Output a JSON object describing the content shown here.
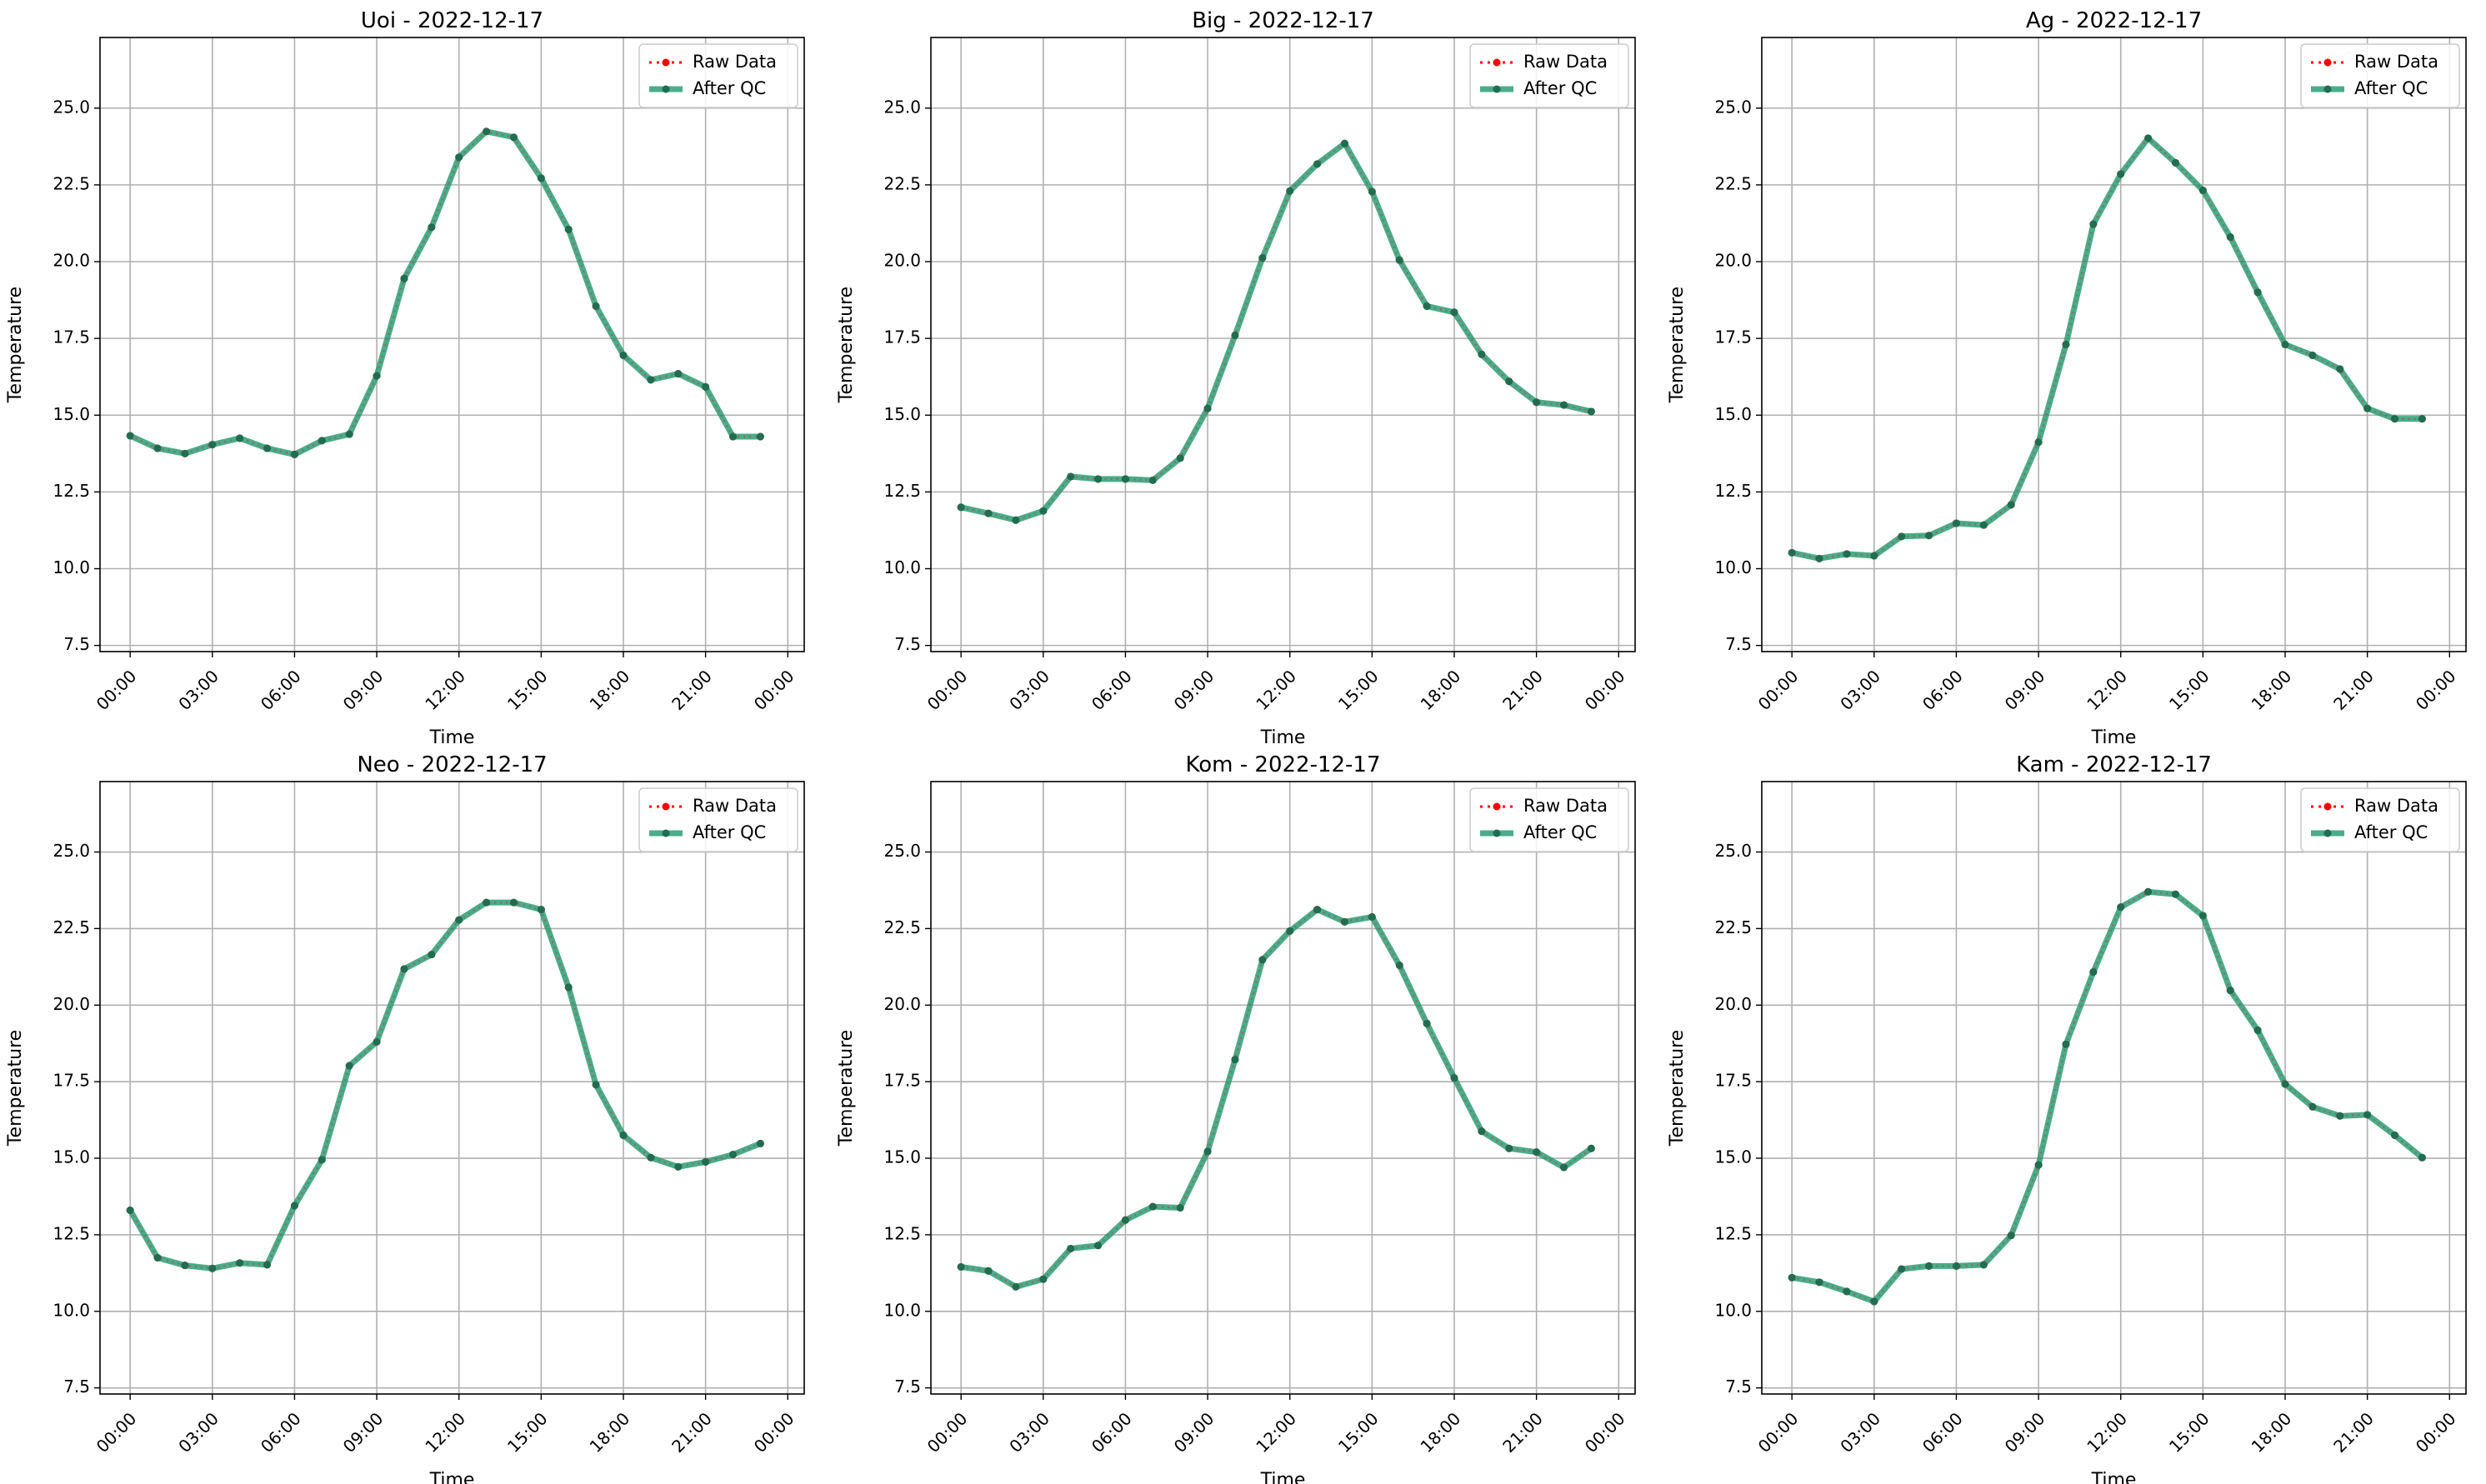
{
  "figure": {
    "background": "#ffffff",
    "grid_color": "#b0b0b0",
    "raw_color": "#ff0000",
    "qc_color": "#2a9d75",
    "qc_marker_color": "#1f6e52"
  },
  "chart_data": [
    {
      "type": "line",
      "title": "Uoi - 2022-12-17",
      "xlabel": "Time",
      "ylabel": "Temperature",
      "x": [
        "00:00",
        "01:00",
        "02:00",
        "03:00",
        "04:00",
        "05:00",
        "06:00",
        "07:00",
        "08:00",
        "09:00",
        "10:00",
        "11:00",
        "12:00",
        "13:00",
        "14:00",
        "15:00",
        "16:00",
        "17:00",
        "18:00",
        "19:00",
        "20:00",
        "21:00",
        "22:00",
        "23:00"
      ],
      "xticks": [
        "00:00",
        "03:00",
        "06:00",
        "09:00",
        "12:00",
        "15:00",
        "18:00",
        "21:00",
        "00:00"
      ],
      "yticks": [
        "7.5",
        "10.0",
        "12.5",
        "15.0",
        "17.5",
        "20.0",
        "22.5",
        "25.0"
      ],
      "ylim": [
        7.3,
        27.3
      ],
      "grid": true,
      "legend": "top-right",
      "series": [
        {
          "name": "Raw Data",
          "values": [
            14.33,
            13.92,
            13.75,
            14.04,
            14.25,
            13.92,
            13.72,
            14.17,
            14.38,
            16.28,
            19.45,
            21.12,
            23.4,
            24.24,
            24.05,
            22.72,
            21.05,
            18.55,
            16.95,
            16.15,
            16.35,
            15.92,
            14.3,
            14.3
          ]
        },
        {
          "name": "After QC",
          "values": [
            14.33,
            13.92,
            13.75,
            14.04,
            14.25,
            13.92,
            13.72,
            14.17,
            14.38,
            16.28,
            19.45,
            21.12,
            23.4,
            24.24,
            24.05,
            22.72,
            21.05,
            18.55,
            16.95,
            16.15,
            16.35,
            15.92,
            14.3,
            14.3
          ]
        }
      ]
    },
    {
      "type": "line",
      "title": "Big - 2022-12-17",
      "xlabel": "Time",
      "ylabel": "Temperature",
      "x": [
        "00:00",
        "01:00",
        "02:00",
        "03:00",
        "04:00",
        "05:00",
        "06:00",
        "07:00",
        "08:00",
        "09:00",
        "10:00",
        "11:00",
        "12:00",
        "13:00",
        "14:00",
        "15:00",
        "16:00",
        "17:00",
        "18:00",
        "19:00",
        "20:00",
        "21:00",
        "22:00",
        "23:00"
      ],
      "xticks": [
        "00:00",
        "03:00",
        "06:00",
        "09:00",
        "12:00",
        "15:00",
        "18:00",
        "21:00",
        "00:00"
      ],
      "yticks": [
        "7.5",
        "10.0",
        "12.5",
        "15.0",
        "17.5",
        "20.0",
        "22.5",
        "25.0"
      ],
      "ylim": [
        7.3,
        27.3
      ],
      "grid": true,
      "legend": "top-right",
      "series": [
        {
          "name": "Raw Data",
          "values": [
            12.0,
            11.8,
            11.58,
            11.88,
            13.0,
            12.92,
            12.92,
            12.88,
            13.6,
            15.22,
            17.6,
            20.12,
            22.3,
            23.18,
            23.85,
            22.28,
            20.05,
            18.55,
            18.35,
            16.98,
            16.1,
            15.42,
            15.33,
            15.12
          ]
        },
        {
          "name": "After QC",
          "values": [
            12.0,
            11.8,
            11.58,
            11.88,
            13.0,
            12.92,
            12.92,
            12.88,
            13.6,
            15.22,
            17.6,
            20.12,
            22.3,
            23.18,
            23.85,
            22.28,
            20.05,
            18.55,
            18.35,
            16.98,
            16.1,
            15.42,
            15.33,
            15.12
          ]
        }
      ]
    },
    {
      "type": "line",
      "title": "Ag - 2022-12-17",
      "xlabel": "Time",
      "ylabel": "Temperature",
      "x": [
        "00:00",
        "01:00",
        "02:00",
        "03:00",
        "04:00",
        "05:00",
        "06:00",
        "07:00",
        "08:00",
        "09:00",
        "10:00",
        "11:00",
        "12:00",
        "13:00",
        "14:00",
        "15:00",
        "16:00",
        "17:00",
        "18:00",
        "19:00",
        "20:00",
        "21:00",
        "22:00",
        "23:00"
      ],
      "xticks": [
        "00:00",
        "03:00",
        "06:00",
        "09:00",
        "12:00",
        "15:00",
        "18:00",
        "21:00",
        "00:00"
      ],
      "yticks": [
        "7.5",
        "10.0",
        "12.5",
        "15.0",
        "17.5",
        "20.0",
        "22.5",
        "25.0"
      ],
      "ylim": [
        7.3,
        27.3
      ],
      "grid": true,
      "legend": "top-right",
      "series": [
        {
          "name": "Raw Data",
          "values": [
            10.52,
            10.33,
            10.48,
            10.42,
            11.05,
            11.08,
            11.48,
            11.42,
            12.08,
            14.12,
            17.3,
            21.22,
            22.85,
            24.02,
            23.22,
            22.32,
            20.8,
            19.0,
            17.3,
            16.95,
            16.5,
            15.22,
            14.88,
            14.88
          ]
        },
        {
          "name": "After QC",
          "values": [
            10.52,
            10.33,
            10.48,
            10.42,
            11.05,
            11.08,
            11.48,
            11.42,
            12.08,
            14.12,
            17.3,
            21.22,
            22.85,
            24.02,
            23.22,
            22.32,
            20.8,
            19.0,
            17.3,
            16.95,
            16.5,
            15.22,
            14.88,
            14.88
          ]
        }
      ]
    },
    {
      "type": "line",
      "title": "Neo - 2022-12-17",
      "xlabel": "Time",
      "ylabel": "Temperature",
      "x": [
        "00:00",
        "01:00",
        "02:00",
        "03:00",
        "04:00",
        "05:00",
        "06:00",
        "07:00",
        "08:00",
        "09:00",
        "10:00",
        "11:00",
        "12:00",
        "13:00",
        "14:00",
        "15:00",
        "16:00",
        "17:00",
        "18:00",
        "19:00",
        "20:00",
        "21:00",
        "22:00",
        "23:00"
      ],
      "xticks": [
        "00:00",
        "03:00",
        "06:00",
        "09:00",
        "12:00",
        "15:00",
        "18:00",
        "21:00",
        "00:00"
      ],
      "yticks": [
        "7.5",
        "10.0",
        "12.5",
        "15.0",
        "17.5",
        "20.0",
        "22.5",
        "25.0"
      ],
      "ylim": [
        7.3,
        27.3
      ],
      "grid": true,
      "legend": "top-right",
      "series": [
        {
          "name": "Raw Data",
          "values": [
            13.3,
            11.75,
            11.5,
            11.4,
            11.58,
            11.52,
            13.45,
            14.95,
            18.02,
            18.8,
            21.18,
            21.65,
            22.78,
            23.35,
            23.35,
            23.12,
            20.58,
            17.4,
            15.75,
            15.02,
            14.72,
            14.88,
            15.12,
            15.48
          ]
        },
        {
          "name": "After QC",
          "values": [
            13.3,
            11.75,
            11.5,
            11.4,
            11.58,
            11.52,
            13.45,
            14.95,
            18.02,
            18.8,
            21.18,
            21.65,
            22.78,
            23.35,
            23.35,
            23.12,
            20.58,
            17.4,
            15.75,
            15.02,
            14.72,
            14.88,
            15.12,
            15.48
          ]
        }
      ]
    },
    {
      "type": "line",
      "title": "Kom - 2022-12-17",
      "xlabel": "Time",
      "ylabel": "Temperature",
      "x": [
        "00:00",
        "01:00",
        "02:00",
        "03:00",
        "04:00",
        "05:00",
        "06:00",
        "07:00",
        "08:00",
        "09:00",
        "10:00",
        "11:00",
        "12:00",
        "13:00",
        "14:00",
        "15:00",
        "16:00",
        "17:00",
        "18:00",
        "19:00",
        "20:00",
        "21:00",
        "22:00",
        "23:00"
      ],
      "xticks": [
        "00:00",
        "03:00",
        "06:00",
        "09:00",
        "12:00",
        "15:00",
        "18:00",
        "21:00",
        "00:00"
      ],
      "yticks": [
        "7.5",
        "10.0",
        "12.5",
        "15.0",
        "17.5",
        "20.0",
        "22.5",
        "25.0"
      ],
      "ylim": [
        7.3,
        27.3
      ],
      "grid": true,
      "legend": "top-right",
      "series": [
        {
          "name": "Raw Data",
          "values": [
            11.45,
            11.32,
            10.8,
            11.05,
            12.05,
            12.15,
            12.98,
            13.42,
            13.38,
            15.22,
            18.22,
            21.48,
            22.42,
            23.12,
            22.72,
            22.88,
            21.3,
            19.4,
            17.62,
            15.88,
            15.32,
            15.2,
            14.7,
            15.32
          ]
        },
        {
          "name": "After QC",
          "values": [
            11.45,
            11.32,
            10.8,
            11.05,
            12.05,
            12.15,
            12.98,
            13.42,
            13.38,
            15.22,
            18.22,
            21.48,
            22.42,
            23.12,
            22.72,
            22.88,
            21.3,
            19.4,
            17.62,
            15.88,
            15.32,
            15.2,
            14.7,
            15.32
          ]
        }
      ]
    },
    {
      "type": "line",
      "title": "Kam - 2022-12-17",
      "xlabel": "Time",
      "ylabel": "Temperature",
      "x": [
        "00:00",
        "01:00",
        "02:00",
        "03:00",
        "04:00",
        "05:00",
        "06:00",
        "07:00",
        "08:00",
        "09:00",
        "10:00",
        "11:00",
        "12:00",
        "13:00",
        "14:00",
        "15:00",
        "16:00",
        "17:00",
        "18:00",
        "19:00",
        "20:00",
        "21:00",
        "22:00",
        "23:00"
      ],
      "xticks": [
        "00:00",
        "03:00",
        "06:00",
        "09:00",
        "12:00",
        "15:00",
        "18:00",
        "21:00",
        "00:00"
      ],
      "yticks": [
        "7.5",
        "10.0",
        "12.5",
        "15.0",
        "17.5",
        "20.0",
        "22.5",
        "25.0"
      ],
      "ylim": [
        7.3,
        27.3
      ],
      "grid": true,
      "legend": "top-right",
      "series": [
        {
          "name": "Raw Data",
          "values": [
            11.1,
            10.95,
            10.65,
            10.32,
            11.38,
            11.48,
            11.48,
            11.52,
            12.48,
            14.78,
            18.72,
            21.08,
            23.2,
            23.7,
            23.62,
            22.92,
            20.48,
            19.18,
            17.42,
            16.68,
            16.38,
            16.42,
            15.75,
            15.02
          ]
        },
        {
          "name": "After QC",
          "values": [
            11.1,
            10.95,
            10.65,
            10.32,
            11.38,
            11.48,
            11.48,
            11.52,
            12.48,
            14.78,
            18.72,
            21.08,
            23.2,
            23.7,
            23.62,
            22.92,
            20.48,
            19.18,
            17.42,
            16.68,
            16.38,
            16.42,
            15.75,
            15.02
          ]
        }
      ]
    }
  ]
}
